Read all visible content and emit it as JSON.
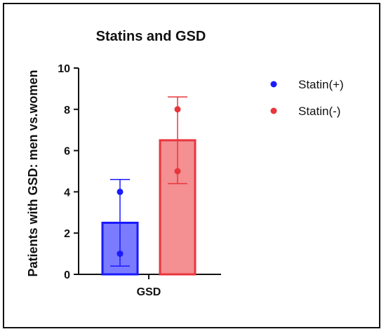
{
  "chart_data": {
    "type": "bar",
    "title": "Statins and GSD",
    "xlabel": "",
    "ylabel": "Patients with GSD: men vs.women",
    "categories": [
      "GSD"
    ],
    "ylim": [
      0,
      10
    ],
    "yticks": [
      0,
      2,
      4,
      6,
      8,
      10
    ],
    "grid": false,
    "legend_position": "top-right",
    "series": [
      {
        "name": "Statin(+)",
        "color": "#1a1aff",
        "fill": "#7b7bff",
        "values": [
          2.5
        ],
        "error_low": [
          0.4
        ],
        "error_high": [
          4.6
        ],
        "points": [
          4,
          1
        ]
      },
      {
        "name": "Statin(-)",
        "color": "#e8363c",
        "fill": "#f48f92",
        "values": [
          6.5
        ],
        "error_low": [
          4.4
        ],
        "error_high": [
          8.6
        ],
        "points": [
          8,
          5
        ]
      }
    ]
  }
}
